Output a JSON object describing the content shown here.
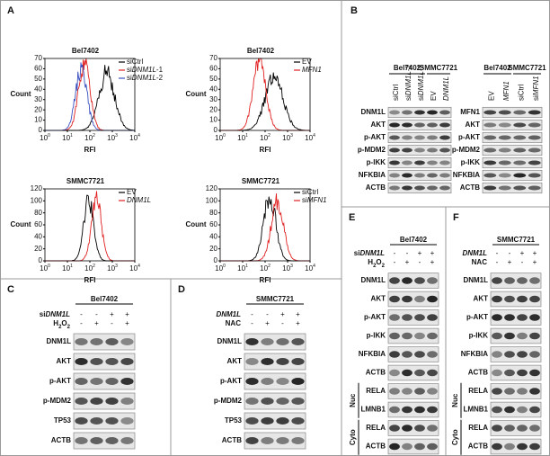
{
  "panel_a": {
    "letter": "A",
    "x_label": "RFI",
    "y_label": "Count",
    "x_tick_base": "10",
    "x_tick_exponents": [
      "0",
      "1",
      "2",
      "3",
      "4"
    ],
    "plots": [
      {
        "title": "Bel7402",
        "y_ticks": [
          "0",
          "10",
          "20",
          "30",
          "40",
          "50",
          "60",
          "70"
        ],
        "legend": [
          {
            "label": [
              {
                "t": "siCtrl"
              }
            ],
            "color": "#000000"
          },
          {
            "label": [
              {
                "t": "si"
              },
              {
                "t": "DNM1L",
                "i": true
              },
              {
                "t": "-1"
              }
            ],
            "color": "#e02020"
          },
          {
            "label": [
              {
                "t": "si"
              },
              {
                "t": "DNM1L",
                "i": true
              },
              {
                "t": "-2"
              }
            ],
            "color": "#3a4fc0"
          }
        ]
      },
      {
        "title": "Bel7402",
        "y_ticks": [
          "0",
          "10",
          "20",
          "30",
          "40",
          "50",
          "60",
          "70"
        ],
        "legend": [
          {
            "label": [
              {
                "t": "EV"
              }
            ],
            "color": "#000000"
          },
          {
            "label": [
              {
                "t": "MFN1",
                "i": true
              }
            ],
            "color": "#e02020"
          }
        ]
      },
      {
        "title": "SMMC7721",
        "y_ticks": [
          "0",
          "20",
          "40",
          "60",
          "80",
          "100",
          "120"
        ],
        "legend": [
          {
            "label": [
              {
                "t": "EV"
              }
            ],
            "color": "#000000"
          },
          {
            "label": [
              {
                "t": "DNM1L",
                "i": true
              }
            ],
            "color": "#e02020"
          }
        ]
      },
      {
        "title": "SMMC7721",
        "y_ticks": [
          "0",
          "20",
          "40",
          "60",
          "80",
          "100",
          "120"
        ],
        "legend": [
          {
            "label": [
              {
                "t": "siCtrl"
              }
            ],
            "color": "#000000"
          },
          {
            "label": [
              {
                "t": "si"
              },
              {
                "t": "MFN1",
                "i": true
              }
            ],
            "color": "#e02020"
          }
        ]
      }
    ]
  },
  "panel_b": {
    "letter": "B",
    "blots": [
      {
        "groups": [
          {
            "name": "Bel7402",
            "lanes": [
              [
                {
                  "t": "siCtrl"
                }
              ],
              [
                {
                  "t": "si"
                },
                {
                  "t": "DNM1L",
                  "i": true
                },
                {
                  "t": "-1"
                }
              ],
              [
                {
                  "t": "si"
                },
                {
                  "t": "DNM1L",
                  "i": true
                },
                {
                  "t": "-2"
                }
              ]
            ]
          },
          {
            "name": "SMMC7721",
            "lanes": [
              [
                {
                  "t": "EV"
                }
              ],
              [
                {
                  "t": "DNM1L",
                  "i": true
                }
              ]
            ]
          }
        ],
        "rows": [
          "DNM1L",
          "AKT",
          "p-AKT",
          "p-MDM2",
          "p-IKK",
          "NFKBIA",
          "ACTB"
        ]
      },
      {
        "groups": [
          {
            "name": "Bel7402",
            "lanes": [
              [
                {
                  "t": "EV"
                }
              ],
              [
                {
                  "t": "MFN1",
                  "i": true
                }
              ]
            ]
          },
          {
            "name": "SMMC7721",
            "lanes": [
              [
                {
                  "t": "siCtrl"
                }
              ],
              [
                {
                  "t": "si"
                },
                {
                  "t": "MFN1",
                  "i": true
                }
              ]
            ]
          }
        ],
        "rows": [
          "MFN1",
          "AKT",
          "p-AKT",
          "p-MDM2",
          "p-IKK",
          "NFKBIA",
          "ACTB"
        ]
      }
    ]
  },
  "panel_c": {
    "letter": "C",
    "cell": "Bel7402",
    "conditions": [
      {
        "label": [
          {
            "t": "si"
          },
          {
            "t": "DNM1L",
            "i": true
          }
        ],
        "signs": [
          "-",
          "-",
          "+",
          "+"
        ]
      },
      {
        "label": [
          {
            "t": "H"
          },
          {
            "t": "2",
            "sub": true
          },
          {
            "t": "O"
          },
          {
            "t": "2",
            "sub": true
          }
        ],
        "signs": [
          "-",
          "+",
          "-",
          "+"
        ]
      }
    ],
    "rows": [
      "DNM1L",
      "AKT",
      "p-AKT",
      "p-MDM2",
      "TP53",
      "ACTB"
    ]
  },
  "panel_d": {
    "letter": "D",
    "cell": "SMMC7721",
    "conditions": [
      {
        "label": [
          {
            "t": "DNM1L",
            "i": true
          }
        ],
        "signs": [
          "-",
          "-",
          "+",
          "+"
        ]
      },
      {
        "label": [
          {
            "t": "NAC"
          }
        ],
        "signs": [
          "-",
          "+",
          "-",
          "+"
        ]
      }
    ],
    "rows": [
      "DNM1L",
      "AKT",
      "p-AKT",
      "p-MDM2",
      "TP53",
      "ACTB"
    ]
  },
  "panel_e": {
    "letter": "E",
    "cell": "Bel7402",
    "conditions": [
      {
        "label": [
          {
            "t": "si"
          },
          {
            "t": "DNM1L",
            "i": true
          }
        ],
        "signs": [
          "-",
          "-",
          "+",
          "+"
        ]
      },
      {
        "label": [
          {
            "t": "H"
          },
          {
            "t": "2",
            "sub": true
          },
          {
            "t": "O"
          },
          {
            "t": "2",
            "sub": true
          }
        ],
        "signs": [
          "-",
          "+",
          "-",
          "+"
        ]
      }
    ],
    "rows": [
      "DNM1L",
      "AKT",
      "p-AKT",
      "p-IKK",
      "NFKBIA",
      "ACTB"
    ],
    "sections": [
      {
        "label": "Nuc",
        "rows": [
          "RELA",
          "LMNB1"
        ]
      },
      {
        "label": "Cyto",
        "rows": [
          "RELA",
          "ACTB"
        ]
      }
    ]
  },
  "panel_f": {
    "letter": "F",
    "cell": "SMMC7721",
    "conditions": [
      {
        "label": [
          {
            "t": "DNM1L",
            "i": true
          }
        ],
        "signs": [
          "-",
          "-",
          "+",
          "+"
        ]
      },
      {
        "label": [
          {
            "t": "NAC"
          }
        ],
        "signs": [
          "-",
          "+",
          "-",
          "+"
        ]
      }
    ],
    "rows": [
      "DNM1L",
      "AKT",
      "p-AKT",
      "p-IKK",
      "NFKBIA",
      "ACTB"
    ],
    "sections": [
      {
        "label": "Nuc",
        "rows": [
          "RELA",
          "LMNB1"
        ]
      },
      {
        "label": "Cyto",
        "rows": [
          "RELA",
          "ACTB"
        ]
      }
    ]
  }
}
